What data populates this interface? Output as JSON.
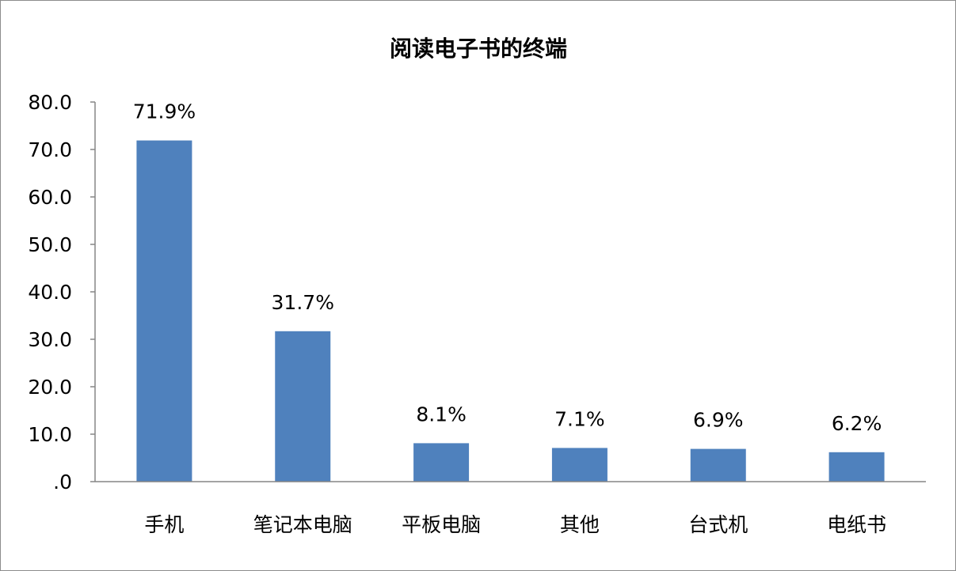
{
  "chart_data": {
    "type": "bar",
    "title": "阅读电子书的终端",
    "categories": [
      "手机",
      "笔记本电脑",
      "平板电脑",
      "其他",
      "台式机",
      "电纸书"
    ],
    "values": [
      71.9,
      31.7,
      8.1,
      7.1,
      6.9,
      6.2
    ],
    "data_labels": [
      "71.9%",
      "31.7%",
      "8.1%",
      "7.1%",
      "6.9%",
      "6.2%"
    ],
    "y_ticks": [
      0,
      10,
      20,
      30,
      40,
      50,
      60,
      70,
      80
    ],
    "y_tick_labels": [
      ".0",
      "10.0",
      "20.0",
      "30.0",
      "40.0",
      "50.0",
      "60.0",
      "70.0",
      "80.0"
    ],
    "ylim": [
      0,
      80
    ],
    "xlabel": "",
    "ylabel": "",
    "grid": false,
    "legend": "none",
    "bar_color": "#4f81bd"
  }
}
